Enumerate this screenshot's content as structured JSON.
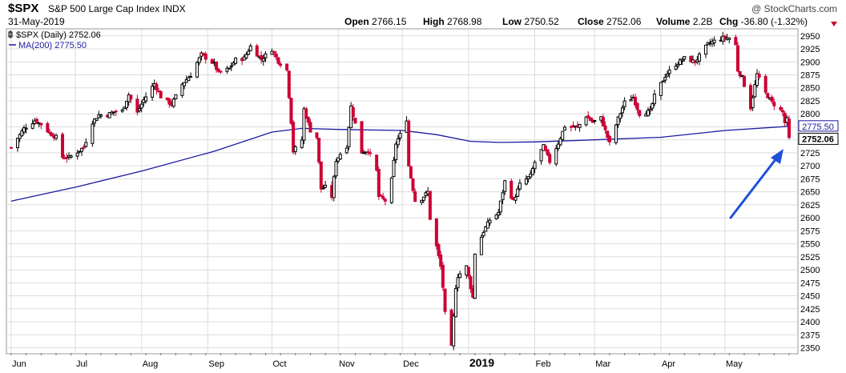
{
  "header": {
    "symbol": "$SPX",
    "name": "S&P 500 Large Cap Index",
    "exchange": "INDX",
    "date": "31-May-2019",
    "copyright": "@ StockCharts.com",
    "quote": {
      "open_label": "Open",
      "open": "2766.15",
      "high_label": "High",
      "high": "2768.98",
      "low_label": "Low",
      "low": "2750.52",
      "close_label": "Close",
      "close": "2752.06",
      "volume_label": "Volume",
      "volume": "2.2B",
      "chg_label": "Chg",
      "chg": "-36.80 (-1.32%)"
    }
  },
  "legend": {
    "price_series": "$SPX (Daily) 2752.06",
    "ma_series": "MA(200) 2775.50"
  },
  "tags": {
    "ma_value": "2775.50",
    "last_price": "2752.06"
  },
  "colors": {
    "up_candle": "#000000",
    "down_candle": "#cc0033",
    "ma_line": "#1a1aa0",
    "arrow": "#1f50d8",
    "grid": "#dcdcdc"
  },
  "annotation": {
    "type": "arrow",
    "points_to": "last_price"
  },
  "chart_data": {
    "type": "candlestick",
    "title": "$SPX S&P 500 Large Cap Index INDX",
    "x_axis": {
      "range": [
        "2018-06-01",
        "2019-05-31"
      ],
      "tick_labels": [
        "Jun",
        "Jul",
        "Aug",
        "Sep",
        "Oct",
        "Nov",
        "Dec",
        "2019",
        "Feb",
        "Mar",
        "Apr",
        "May"
      ]
    },
    "y_axis": {
      "side": "right",
      "range": [
        2340,
        2962
      ],
      "tick_labels": [
        2350,
        2375,
        2400,
        2425,
        2450,
        2475,
        2500,
        2525,
        2550,
        2575,
        2600,
        2625,
        2650,
        2675,
        2700,
        2725,
        2750,
        2775,
        2800,
        2825,
        2850,
        2875,
        2900,
        2925,
        2950
      ]
    },
    "grid": true,
    "close_series": [
      [
        "2018-06-01",
        2735
      ],
      [
        "2018-06-07",
        2772
      ],
      [
        "2018-06-12",
        2787
      ],
      [
        "2018-06-15",
        2780
      ],
      [
        "2018-06-19",
        2763
      ],
      [
        "2018-06-22",
        2755
      ],
      [
        "2018-06-25",
        2717
      ],
      [
        "2018-06-28",
        2716
      ],
      [
        "2018-07-02",
        2727
      ],
      [
        "2018-07-05",
        2736
      ],
      [
        "2018-07-09",
        2784
      ],
      [
        "2018-07-12",
        2798
      ],
      [
        "2018-07-16",
        2798
      ],
      [
        "2018-07-19",
        2804
      ],
      [
        "2018-07-23",
        2806
      ],
      [
        "2018-07-26",
        2837
      ],
      [
        "2018-07-30",
        2802
      ],
      [
        "2018-08-02",
        2827
      ],
      [
        "2018-08-07",
        2858
      ],
      [
        "2018-08-10",
        2833
      ],
      [
        "2018-08-15",
        2818
      ],
      [
        "2018-08-20",
        2857
      ],
      [
        "2018-08-24",
        2875
      ],
      [
        "2018-08-29",
        2914
      ],
      [
        "2018-09-04",
        2896
      ],
      [
        "2018-09-06",
        2878
      ],
      [
        "2018-09-11",
        2887
      ],
      [
        "2018-09-14",
        2904
      ],
      [
        "2018-09-18",
        2907
      ],
      [
        "2018-09-21",
        2930
      ],
      [
        "2018-09-26",
        2905
      ],
      [
        "2018-10-01",
        2924
      ],
      [
        "2018-10-04",
        2901
      ],
      [
        "2018-10-08",
        2884
      ],
      [
        "2018-10-10",
        2785
      ],
      [
        "2018-10-11",
        2728
      ],
      [
        "2018-10-15",
        2750
      ],
      [
        "2018-10-16",
        2809
      ],
      [
        "2018-10-19",
        2768
      ],
      [
        "2018-10-22",
        2755
      ],
      [
        "2018-10-24",
        2656
      ],
      [
        "2018-10-26",
        2659
      ],
      [
        "2018-10-29",
        2641
      ],
      [
        "2018-10-31",
        2711
      ],
      [
        "2018-11-02",
        2723
      ],
      [
        "2018-11-05",
        2738
      ],
      [
        "2018-11-07",
        2814
      ],
      [
        "2018-11-09",
        2781
      ],
      [
        "2018-11-12",
        2726
      ],
      [
        "2018-11-15",
        2730
      ],
      [
        "2018-11-19",
        2690
      ],
      [
        "2018-11-20",
        2641
      ],
      [
        "2018-11-23",
        2633
      ],
      [
        "2018-11-26",
        2673
      ],
      [
        "2018-11-28",
        2743
      ],
      [
        "2018-11-30",
        2760
      ],
      [
        "2018-12-03",
        2790
      ],
      [
        "2018-12-04",
        2700
      ],
      [
        "2018-12-07",
        2633
      ],
      [
        "2018-12-10",
        2637
      ],
      [
        "2018-12-13",
        2650
      ],
      [
        "2018-12-14",
        2599
      ],
      [
        "2018-12-17",
        2545
      ],
      [
        "2018-12-19",
        2506
      ],
      [
        "2018-12-20",
        2467
      ],
      [
        "2018-12-21",
        2416
      ],
      [
        "2018-12-24",
        2351
      ],
      [
        "2018-12-26",
        2467
      ],
      [
        "2018-12-27",
        2488
      ],
      [
        "2018-12-31",
        2506
      ],
      [
        "2019-01-03",
        2447
      ],
      [
        "2019-01-04",
        2532
      ],
      [
        "2019-01-08",
        2574
      ],
      [
        "2019-01-11",
        2596
      ],
      [
        "2019-01-15",
        2610
      ],
      [
        "2019-01-18",
        2670
      ],
      [
        "2019-01-22",
        2632
      ],
      [
        "2019-01-25",
        2664
      ],
      [
        "2019-01-30",
        2681
      ],
      [
        "2019-02-01",
        2707
      ],
      [
        "2019-02-05",
        2737
      ],
      [
        "2019-02-08",
        2708
      ],
      [
        "2019-02-12",
        2744
      ],
      [
        "2019-02-15",
        2776
      ],
      [
        "2019-02-21",
        2774
      ],
      [
        "2019-02-25",
        2796
      ],
      [
        "2019-02-28",
        2784
      ],
      [
        "2019-03-04",
        2792
      ],
      [
        "2019-03-08",
        2743
      ],
      [
        "2019-03-12",
        2791
      ],
      [
        "2019-03-15",
        2822
      ],
      [
        "2019-03-19",
        2832
      ],
      [
        "2019-03-22",
        2800
      ],
      [
        "2019-03-27",
        2805
      ],
      [
        "2019-03-29",
        2834
      ],
      [
        "2019-04-03",
        2873
      ],
      [
        "2019-04-08",
        2895
      ],
      [
        "2019-04-12",
        2907
      ],
      [
        "2019-04-17",
        2900
      ],
      [
        "2019-04-23",
        2934
      ],
      [
        "2019-04-26",
        2940
      ],
      [
        "2019-04-30",
        2946
      ],
      [
        "2019-05-03",
        2946
      ],
      [
        "2019-05-06",
        2932
      ],
      [
        "2019-05-07",
        2884
      ],
      [
        "2019-05-09",
        2870
      ],
      [
        "2019-05-13",
        2812
      ],
      [
        "2019-05-16",
        2876
      ],
      [
        "2019-05-20",
        2840
      ],
      [
        "2019-05-23",
        2822
      ],
      [
        "2019-05-28",
        2803
      ],
      [
        "2019-05-29",
        2783
      ],
      [
        "2019-05-30",
        2789
      ],
      [
        "2019-05-31",
        2752
      ]
    ],
    "ma200_series": [
      [
        "2018-06-01",
        2632
      ],
      [
        "2018-07-02",
        2660
      ],
      [
        "2018-08-01",
        2690
      ],
      [
        "2018-09-04",
        2728
      ],
      [
        "2018-10-01",
        2765
      ],
      [
        "2018-10-15",
        2772
      ],
      [
        "2018-11-01",
        2770
      ],
      [
        "2018-12-01",
        2768
      ],
      [
        "2018-12-17",
        2760
      ],
      [
        "2019-01-02",
        2747
      ],
      [
        "2019-01-15",
        2745
      ],
      [
        "2019-02-01",
        2746
      ],
      [
        "2019-03-01",
        2750
      ],
      [
        "2019-04-01",
        2755
      ],
      [
        "2019-05-01",
        2768
      ],
      [
        "2019-05-31",
        2776
      ]
    ]
  }
}
